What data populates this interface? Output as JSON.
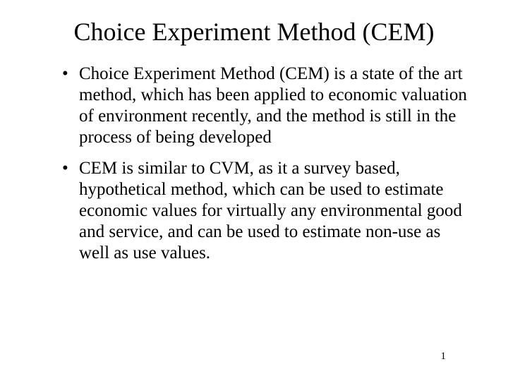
{
  "slide": {
    "title": "Choice Experiment Method (CEM)",
    "bullets": [
      "Choice Experiment Method (CEM) is a state of the art method, which has been applied to economic valuation of environment recently, and the method is still in the process of being developed",
      "CEM is similar to CVM, as it a survey based, hypothetical method, which can be used to estimate economic values for virtually any environmental good and service, and can be used to estimate non-use as well as use values."
    ],
    "page_number": "1"
  },
  "style": {
    "background_color": "#ffffff",
    "text_color": "#000000",
    "font_family": "Times New Roman",
    "title_fontsize": 36,
    "body_fontsize": 25,
    "page_number_fontsize": 15
  }
}
